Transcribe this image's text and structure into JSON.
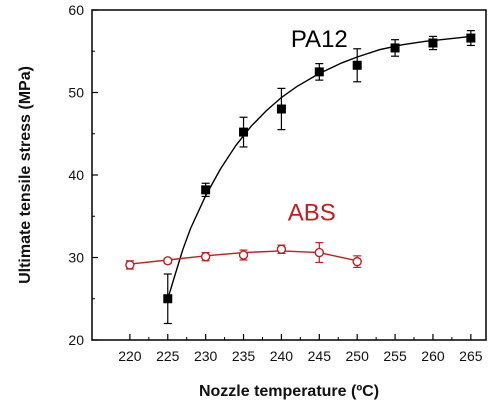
{
  "chart_data": {
    "type": "scatter",
    "title": "",
    "xlabel": "Nozzle temperature (ºC)",
    "ylabel": "Ultimate tensile stress (MPa)",
    "xlim": [
      215,
      267
    ],
    "ylim": [
      20,
      60
    ],
    "x_ticks": [
      220,
      225,
      230,
      235,
      240,
      245,
      250,
      255,
      260,
      265
    ],
    "y_ticks": [
      20,
      30,
      40,
      50,
      60
    ],
    "grid": false,
    "legend": "none",
    "series": [
      {
        "name": "PA12",
        "color": "#000000",
        "marker": "filled-square",
        "x": [
          225,
          230,
          235,
          240,
          245,
          250,
          255,
          260,
          265
        ],
        "y": [
          25.0,
          38.2,
          45.2,
          48.0,
          52.5,
          53.3,
          55.4,
          56.0,
          56.6
        ],
        "err": [
          3.0,
          0.8,
          1.8,
          2.5,
          1.0,
          2.0,
          1.0,
          0.8,
          0.9
        ],
        "fit_x": [
          225,
          226,
          227,
          228,
          230,
          232,
          234,
          236,
          238,
          240,
          242,
          245,
          248,
          250,
          253,
          256,
          259,
          262,
          265
        ],
        "fit_y": [
          25.0,
          28.0,
          31.0,
          33.5,
          37.5,
          40.8,
          43.6,
          45.9,
          47.8,
          49.4,
          50.7,
          52.3,
          53.6,
          54.3,
          55.2,
          55.8,
          56.2,
          56.5,
          56.8
        ]
      },
      {
        "name": "ABS",
        "color": "#c0201f",
        "marker": "open-circle",
        "x": [
          220,
          225,
          230,
          235,
          240,
          245,
          250
        ],
        "y": [
          29.1,
          29.6,
          30.1,
          30.3,
          31.0,
          30.6,
          29.5
        ],
        "err": [
          0.5,
          0.3,
          0.5,
          0.6,
          0.5,
          1.2,
          0.7
        ],
        "fit_x": [
          220,
          225,
          230,
          235,
          240,
          245,
          250
        ],
        "fit_y": [
          29.2,
          29.7,
          30.2,
          30.6,
          30.8,
          30.6,
          29.6
        ]
      }
    ],
    "annotations": [
      {
        "text": "PA12",
        "x": 245,
        "y": 55.5,
        "color": "#000000"
      },
      {
        "text": "ABS",
        "x": 244,
        "y": 34.5,
        "color": "#c0201f"
      }
    ]
  }
}
